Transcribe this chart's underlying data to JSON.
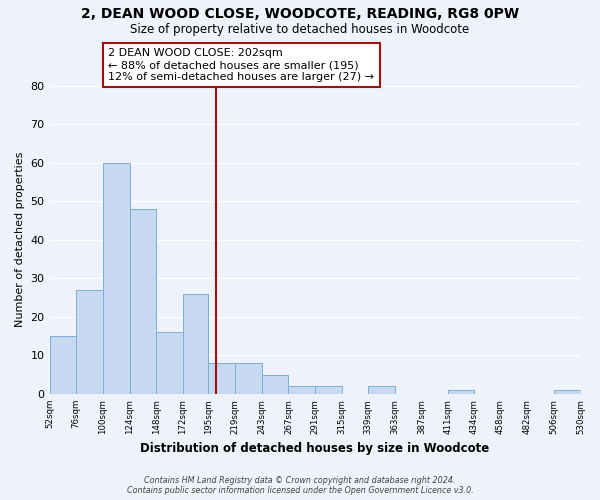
{
  "title": "2, DEAN WOOD CLOSE, WOODCOTE, READING, RG8 0PW",
  "subtitle": "Size of property relative to detached houses in Woodcote",
  "xlabel": "Distribution of detached houses by size in Woodcote",
  "ylabel": "Number of detached properties",
  "bin_edges": [
    52,
    76,
    100,
    124,
    148,
    172,
    195,
    219,
    243,
    267,
    291,
    315,
    339,
    363,
    387,
    411,
    434,
    458,
    482,
    506,
    530
  ],
  "bin_labels": [
    "52sqm",
    "76sqm",
    "100sqm",
    "124sqm",
    "148sqm",
    "172sqm",
    "195sqm",
    "219sqm",
    "243sqm",
    "267sqm",
    "291sqm",
    "315sqm",
    "339sqm",
    "363sqm",
    "387sqm",
    "411sqm",
    "434sqm",
    "458sqm",
    "482sqm",
    "506sqm",
    "530sqm"
  ],
  "counts": [
    15,
    27,
    60,
    48,
    16,
    26,
    8,
    8,
    5,
    2,
    2,
    0,
    2,
    0,
    0,
    1,
    0,
    0,
    0,
    1
  ],
  "bar_color": "#c6d9f0",
  "bar_edge_color": "#7bafd4",
  "reference_line_x": 202,
  "reference_line_color": "#a01010",
  "box_text_line1": "2 DEAN WOOD CLOSE: 202sqm",
  "box_text_line2": "← 88% of detached houses are smaller (195)",
  "box_text_line3": "12% of semi-detached houses are larger (27) →",
  "box_color": "white",
  "box_edge_color": "#a01010",
  "ylim": [
    0,
    80
  ],
  "yticks": [
    0,
    10,
    20,
    30,
    40,
    50,
    60,
    70,
    80
  ],
  "footer_line1": "Contains HM Land Registry data © Crown copyright and database right 2024.",
  "footer_line2": "Contains public sector information licensed under the Open Government Licence v3.0.",
  "background_color": "#eef2fa",
  "grid_color": "white"
}
